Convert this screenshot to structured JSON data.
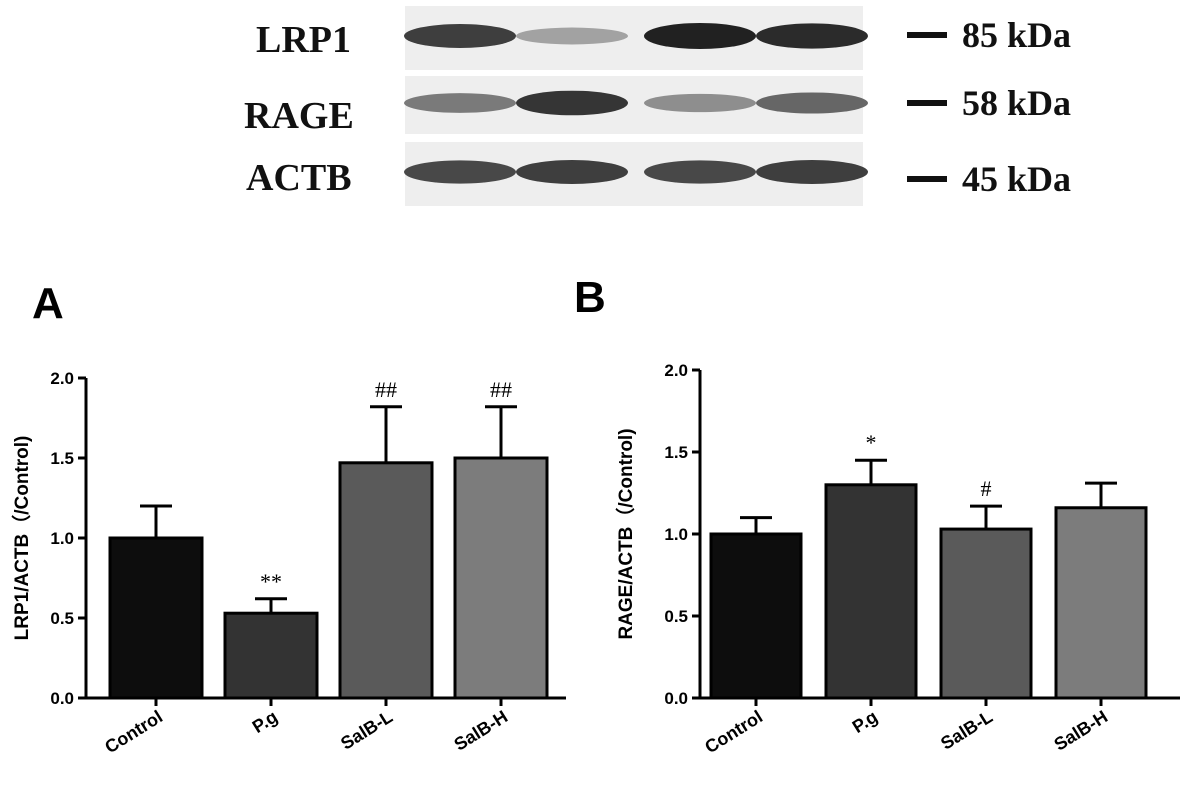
{
  "blot": {
    "rows": [
      {
        "label": "LRP1",
        "marker": "85 kDa",
        "intensities": [
          0.85,
          0.35,
          1.0,
          0.95
        ]
      },
      {
        "label": "RAGE",
        "marker": "58 kDa",
        "intensities": [
          0.55,
          0.9,
          0.45,
          0.65
        ]
      },
      {
        "label": "ACTB",
        "marker": "45 kDa",
        "intensities": [
          0.8,
          0.85,
          0.8,
          0.85
        ]
      }
    ]
  },
  "chart_data": [
    {
      "type": "bar",
      "panel": "A",
      "categories": [
        "Control",
        "P.g",
        "SalB-L",
        "SalB-H"
      ],
      "values": [
        1.0,
        0.53,
        1.47,
        1.5
      ],
      "errors": [
        0.2,
        0.09,
        0.35,
        0.32
      ],
      "annotations": [
        "",
        "**",
        "##",
        "##"
      ],
      "colors": [
        "#0d0d0d",
        "#333333",
        "#5a5a5a",
        "#7c7c7c"
      ],
      "ylabel": "LRP1/ACTB（/Control)",
      "ylim": [
        0,
        2.0
      ],
      "yticks": [
        "0.0",
        "0.5",
        "1.0",
        "1.5",
        "2.0"
      ]
    },
    {
      "type": "bar",
      "panel": "B",
      "categories": [
        "Control",
        "P.g",
        "SalB-L",
        "SalB-H"
      ],
      "values": [
        1.0,
        1.3,
        1.03,
        1.16
      ],
      "errors": [
        0.1,
        0.15,
        0.14,
        0.15
      ],
      "annotations": [
        "",
        "*",
        "#",
        ""
      ],
      "colors": [
        "#0d0d0d",
        "#333333",
        "#5a5a5a",
        "#7c7c7c"
      ],
      "ylabel": "RAGE/ACTB（/Control)",
      "ylim": [
        0,
        2.0
      ],
      "yticks": [
        "0.0",
        "0.5",
        "1.0",
        "1.5",
        "2.0"
      ]
    }
  ]
}
